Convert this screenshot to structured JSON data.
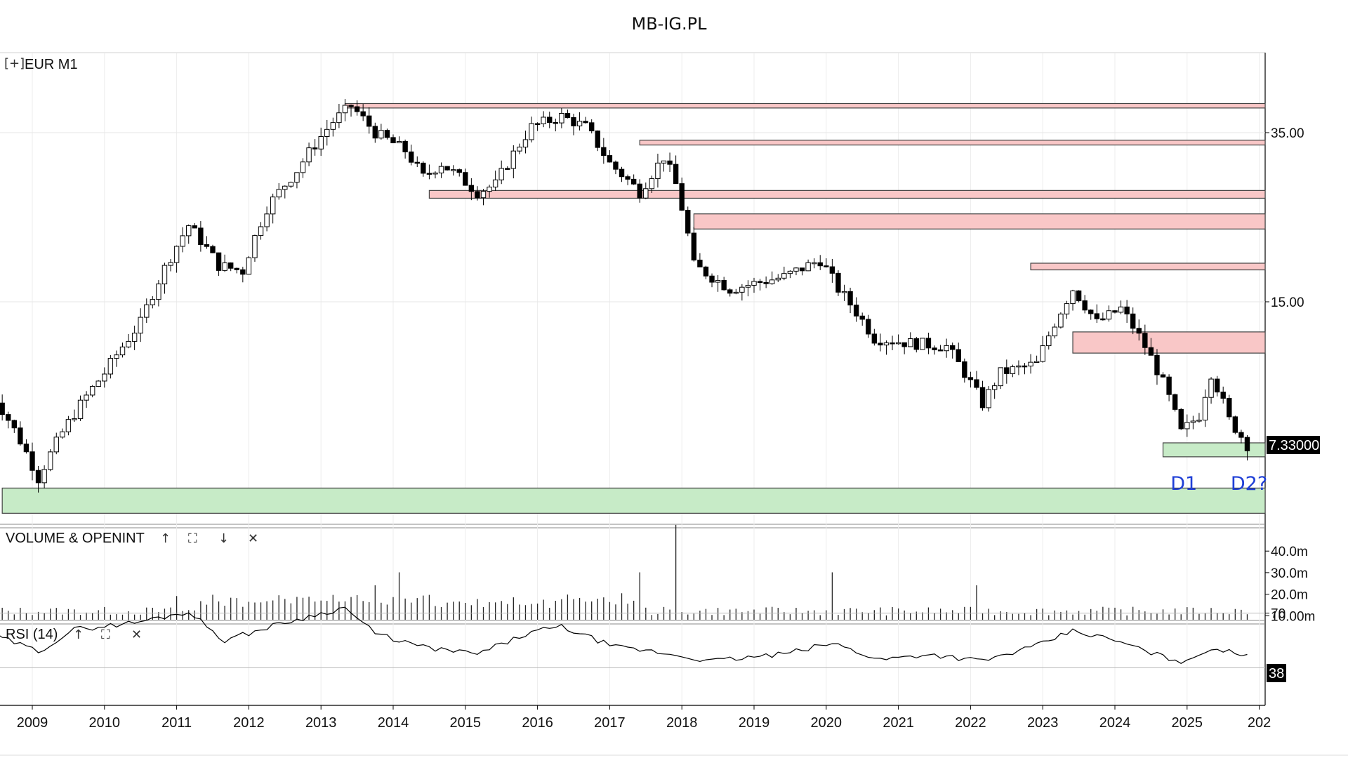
{
  "title": "MB-IG.PL",
  "panels": {
    "price": {
      "label": "EUR  M1",
      "expand_icon": "[+]"
    },
    "volume": {
      "label": "VOLUME & OPENINT",
      "controls": [
        "↑",
        "⛶",
        "↓",
        "✕"
      ]
    },
    "rsi": {
      "label": "RSI (14)",
      "controls": [
        "↑",
        "⛶",
        "✕"
      ]
    }
  },
  "colors": {
    "resistance": "#f9c7c7",
    "support": "#c7ebc7",
    "annotation": "#1f3fd6",
    "candle_up": "#ffffff",
    "candle_down": "#000000"
  },
  "chart_data": {
    "type": "candlestick",
    "timeframe": "M1",
    "x_ticks": [
      "2009",
      "2010",
      "2011",
      "2012",
      "2013",
      "2014",
      "2015",
      "2016",
      "2017",
      "2018",
      "2019",
      "2020",
      "2021",
      "2022",
      "2023",
      "2024",
      "2025",
      "202"
    ],
    "y_ticks": [
      "35.00",
      "15.00"
    ],
    "y_scale": "log",
    "last_price": "7.33000",
    "price_anchors": [
      {
        "date": "2008-06",
        "price": 9.6
      },
      {
        "date": "2009-02",
        "price": 6.2
      },
      {
        "date": "2009-06",
        "price": 7.8
      },
      {
        "date": "2010-01",
        "price": 10.5
      },
      {
        "date": "2010-07",
        "price": 13.5
      },
      {
        "date": "2011-03",
        "price": 22
      },
      {
        "date": "2011-08",
        "price": 18
      },
      {
        "date": "2011-12",
        "price": 17.5
      },
      {
        "date": "2012-04",
        "price": 24
      },
      {
        "date": "2012-09",
        "price": 29
      },
      {
        "date": "2013-03",
        "price": 37
      },
      {
        "date": "2013-06",
        "price": 40
      },
      {
        "date": "2013-10",
        "price": 35
      },
      {
        "date": "2014-03",
        "price": 32
      },
      {
        "date": "2014-06",
        "price": 28
      },
      {
        "date": "2014-09",
        "price": 30
      },
      {
        "date": "2015-03",
        "price": 26
      },
      {
        "date": "2015-06",
        "price": 27
      },
      {
        "date": "2015-12",
        "price": 36
      },
      {
        "date": "2016-05",
        "price": 38
      },
      {
        "date": "2016-09",
        "price": 36
      },
      {
        "date": "2017-01",
        "price": 30
      },
      {
        "date": "2017-06",
        "price": 26
      },
      {
        "date": "2017-10",
        "price": 31
      },
      {
        "date": "2017-12",
        "price": 27
      },
      {
        "date": "2018-03",
        "price": 18
      },
      {
        "date": "2018-09",
        "price": 16
      },
      {
        "date": "2019-06",
        "price": 17
      },
      {
        "date": "2019-12",
        "price": 18.5
      },
      {
        "date": "2020-03",
        "price": 16
      },
      {
        "date": "2020-09",
        "price": 12.5
      },
      {
        "date": "2021-03",
        "price": 12.2
      },
      {
        "date": "2021-09",
        "price": 12
      },
      {
        "date": "2022-03",
        "price": 9
      },
      {
        "date": "2022-06",
        "price": 10.5
      },
      {
        "date": "2022-12",
        "price": 11
      },
      {
        "date": "2023-06",
        "price": 16
      },
      {
        "date": "2023-10",
        "price": 13.5
      },
      {
        "date": "2024-02",
        "price": 14.5
      },
      {
        "date": "2024-06",
        "price": 12
      },
      {
        "date": "2024-09",
        "price": 10
      },
      {
        "date": "2024-12",
        "price": 7.8
      },
      {
        "date": "2025-03",
        "price": 8.5
      },
      {
        "date": "2025-05",
        "price": 10.5
      },
      {
        "date": "2025-08",
        "price": 8.3
      },
      {
        "date": "2025-11",
        "price": 7.33
      }
    ],
    "zones": [
      {
        "kind": "resistance",
        "from": "2013-05",
        "top": 40.5,
        "bottom": 39.6
      },
      {
        "kind": "resistance",
        "from": "2017-06",
        "top": 33.7,
        "bottom": 32.9
      },
      {
        "kind": "resistance",
        "from": "2014-07",
        "top": 26.2,
        "bottom": 25.2
      },
      {
        "kind": "resistance",
        "from": "2018-03",
        "top": 23.3,
        "bottom": 21.6
      },
      {
        "kind": "resistance",
        "from": "2022-11",
        "top": 18.2,
        "bottom": 17.6
      },
      {
        "kind": "resistance",
        "from": "2023-06",
        "top": 12.9,
        "bottom": 11.6
      },
      {
        "kind": "support",
        "from": "2024-09",
        "top": 7.4,
        "bottom": 6.9
      },
      {
        "kind": "support",
        "from": "2008-08",
        "top": 5.9,
        "bottom": 5.2
      }
    ],
    "annotations": [
      {
        "text": "D1",
        "date": "2024-12"
      },
      {
        "text": "D2?",
        "date": "2025-10"
      }
    ],
    "volume": {
      "y_ticks": [
        "40.0m",
        "30.0m",
        "20.0m",
        "10.00m"
      ],
      "spikes": [
        {
          "date": "2011-01",
          "value": 11
        },
        {
          "date": "2013-10",
          "value": 16
        },
        {
          "date": "2014-02",
          "value": 22
        },
        {
          "date": "2017-06",
          "value": 22
        },
        {
          "date": "2017-12",
          "value": 44
        },
        {
          "date": "2020-02",
          "value": 22
        },
        {
          "date": "2022-02",
          "value": 16
        }
      ]
    },
    "rsi": {
      "period": 14,
      "y_ticks": [
        "70"
      ],
      "levels": [
        70,
        30
      ],
      "last_value": "38",
      "anchors": [
        {
          "date": "2008-06",
          "value": 55
        },
        {
          "date": "2009-02",
          "value": 42
        },
        {
          "date": "2009-08",
          "value": 58
        },
        {
          "date": "2010-06",
          "value": 63
        },
        {
          "date": "2011-03",
          "value": 71
        },
        {
          "date": "2011-09",
          "value": 50
        },
        {
          "date": "2012-06",
          "value": 62
        },
        {
          "date": "2013-05",
          "value": 74
        },
        {
          "date": "2013-10",
          "value": 55
        },
        {
          "date": "2014-06",
          "value": 45
        },
        {
          "date": "2015-03",
          "value": 40
        },
        {
          "date": "2015-12",
          "value": 56
        },
        {
          "date": "2016-05",
          "value": 60
        },
        {
          "date": "2017-02",
          "value": 45
        },
        {
          "date": "2017-08",
          "value": 42
        },
        {
          "date": "2018-06",
          "value": 35
        },
        {
          "date": "2019-06",
          "value": 40
        },
        {
          "date": "2020-02",
          "value": 48
        },
        {
          "date": "2020-10",
          "value": 36
        },
        {
          "date": "2021-06",
          "value": 40
        },
        {
          "date": "2022-03",
          "value": 35
        },
        {
          "date": "2022-12",
          "value": 46
        },
        {
          "date": "2023-06",
          "value": 57
        },
        {
          "date": "2024-01",
          "value": 50
        },
        {
          "date": "2024-09",
          "value": 38
        },
        {
          "date": "2025-01",
          "value": 34
        },
        {
          "date": "2025-05",
          "value": 45
        },
        {
          "date": "2025-11",
          "value": 38
        }
      ]
    }
  }
}
